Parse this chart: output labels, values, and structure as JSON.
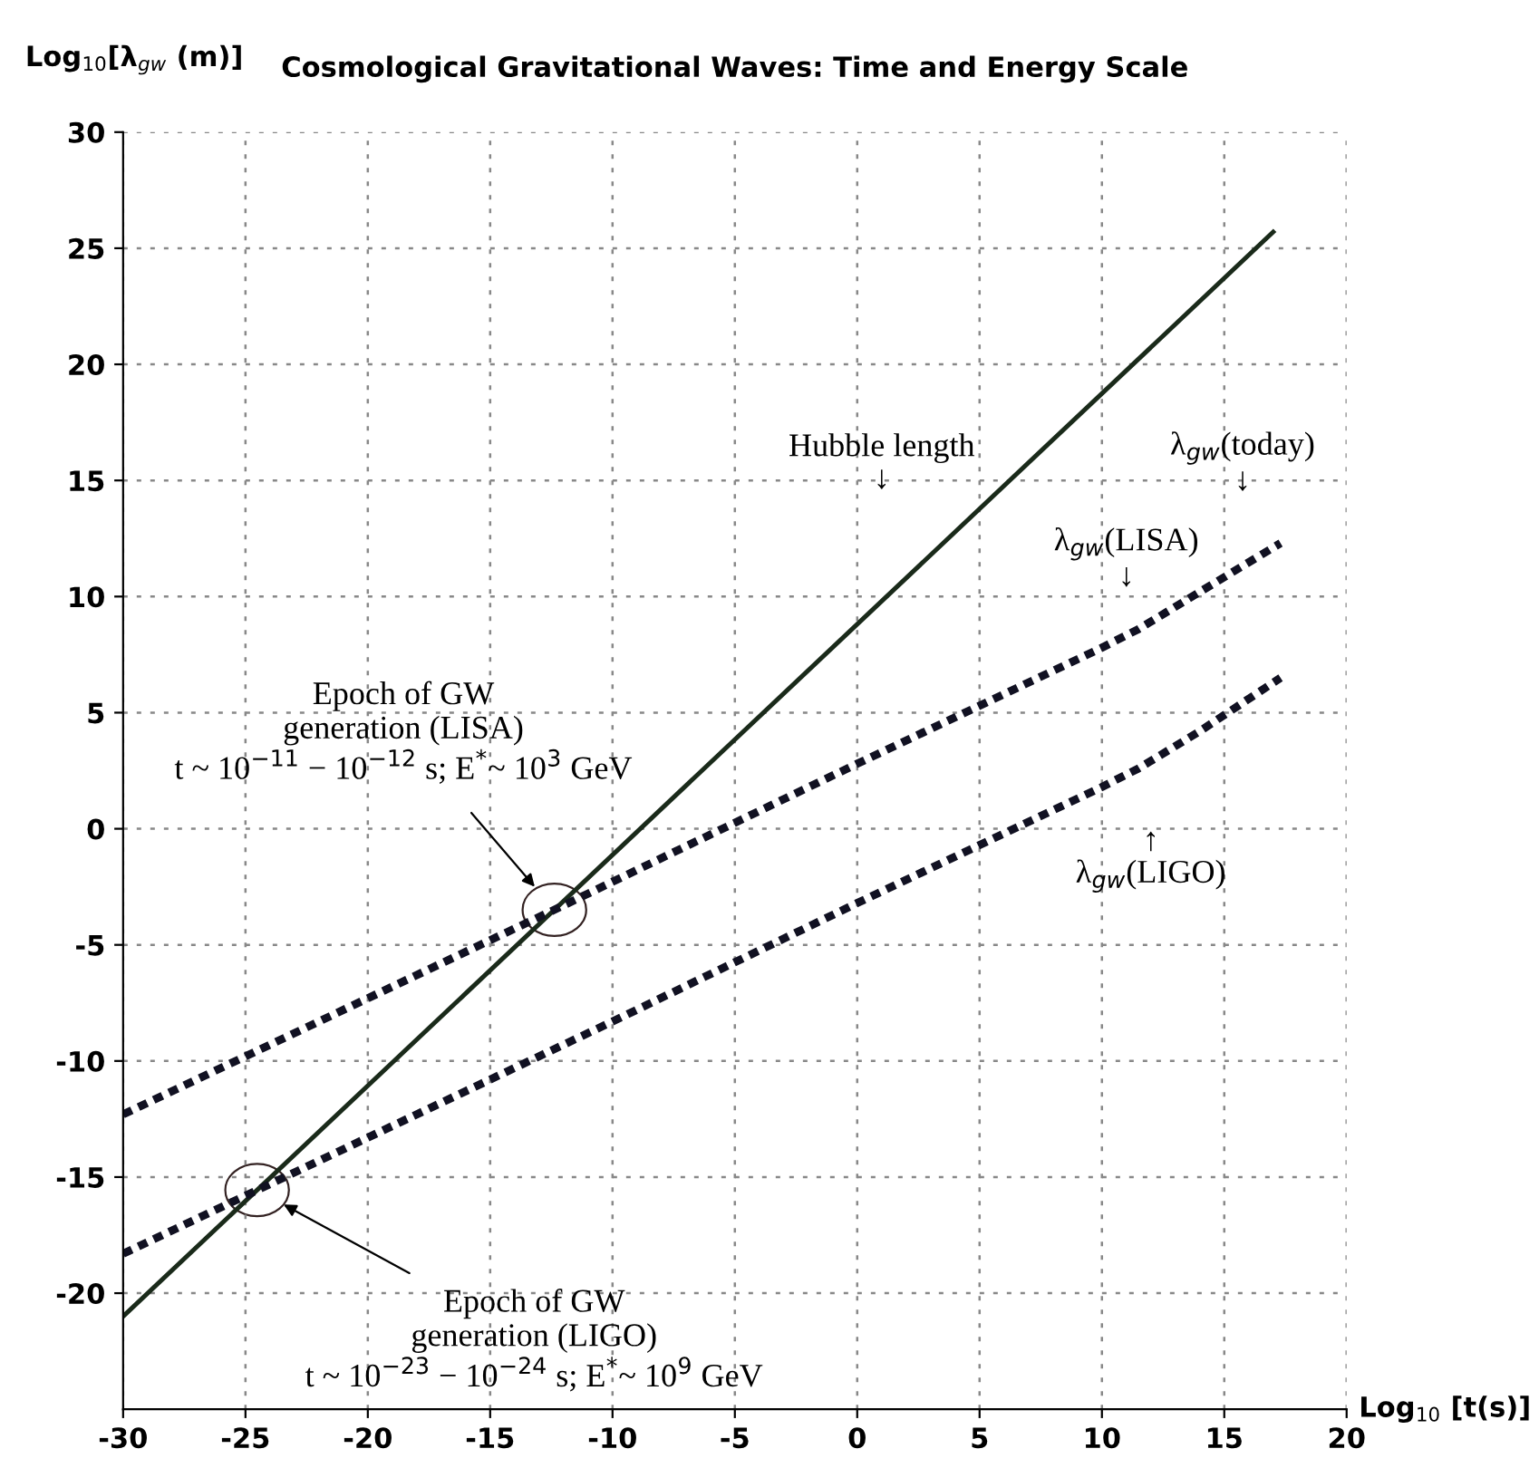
{
  "chart_data": {
    "type": "line",
    "title": "Cosmological Gravitational Waves: Time and Energy Scale",
    "xlabel": "Log$_{10}$ [t(s)]",
    "ylabel": "Log$_{10}$[λ$_{gw}$ (m)]",
    "xlim": [
      -30,
      20
    ],
    "ylim": [
      -25,
      30
    ],
    "xticks": [
      -30,
      -25,
      -20,
      -15,
      -10,
      -5,
      0,
      5,
      10,
      15,
      20
    ],
    "yticks": [
      -20,
      -15,
      -10,
      -5,
      0,
      5,
      10,
      15,
      20,
      25,
      30
    ],
    "grid": true,
    "series": [
      {
        "color": "#1a2a1a",
        "line_style": "solid",
        "x": [
          -30,
          17
        ],
        "values": [
          -21,
          25.7
        ]
      },
      {
        "color": "#111122",
        "line_style": "dotted",
        "x": [
          -30,
          -12,
          0,
          10,
          11.5,
          14,
          17.3
        ],
        "values": [
          -12.3,
          -3.3,
          2.8,
          7.8,
          8.6,
          10.2,
          12.3
        ]
      },
      {
        "color": "#111122",
        "line_style": "dotted",
        "x": [
          -30,
          -24,
          -10,
          0,
          10,
          11.5,
          14,
          17.3
        ],
        "values": [
          -18.3,
          -15.3,
          -8.3,
          -3.2,
          1.8,
          2.6,
          4.2,
          6.5
        ]
      }
    ],
    "annotations": [
      "Hubble length\n↓",
      "λ$_{gw}$(today)\n↓",
      "λ$_{gw}$(LISA)\n↓",
      "↑\nλ$_{gw}$(LIGO)",
      "Epoch of GW\ngeneration (LISA)\nt ~ 10$^{−11}$ − 10$^{−12}$ s; E$^{*}$~ 10$^{3}$ GeV",
      "Epoch of GW\ngeneration (LIGO)\nt ~ 10$^{−23}$ − 10$^{−24}$ s; E$^{*}$~ 10$^{9}$ GeV"
    ]
  }
}
